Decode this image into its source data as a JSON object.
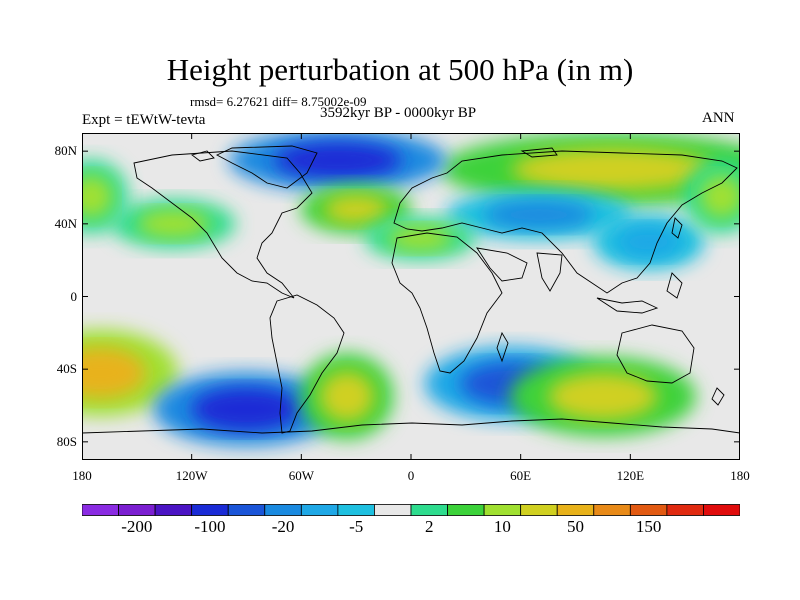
{
  "title": "Height perturbation at 500 hPa (in m)",
  "stats": "rmsd= 6.27621 diff= 8.75002e-09",
  "experiment": "Expt = tEWtW-tevta",
  "period": "3592kyr BP - 0000kyr BP",
  "season": "ANN",
  "lat_labels": [
    "80N",
    "40N",
    "0",
    "40S",
    "80S"
  ],
  "lat_values": [
    80,
    40,
    0,
    -40,
    -80
  ],
  "lon_labels": [
    "180",
    "120W",
    "60W",
    "0",
    "60E",
    "120E",
    "180"
  ],
  "lon_values": [
    -180,
    -120,
    -60,
    0,
    60,
    120,
    180
  ],
  "colorbar": {
    "colors": [
      "#8a2be2",
      "#7b1fd1",
      "#4b14c4",
      "#1a2bd6",
      "#1b55d8",
      "#1a8ae0",
      "#1fa8e6",
      "#1ec0e0",
      "#e8e8e8",
      "#2edc8e",
      "#3cd23a",
      "#a0e030",
      "#d0d020",
      "#e8b21a",
      "#e88a18",
      "#e25a12",
      "#e02a10",
      "#e00c0c"
    ],
    "labels": [
      "-200",
      "-100",
      "-20",
      "-5",
      "2",
      "10",
      "50",
      "150"
    ],
    "label_boundary_index": [
      1,
      3,
      5,
      7,
      9,
      11,
      13,
      15
    ]
  },
  "anomalies": [
    {
      "lon": -170,
      "lat": -42,
      "rlon": 25,
      "rlat": 14,
      "level": 13
    },
    {
      "lon": -90,
      "lat": -62,
      "rlon": 30,
      "rlat": 12,
      "level": 3
    },
    {
      "lon": -35,
      "lat": -55,
      "rlon": 15,
      "rlat": 14,
      "level": 12
    },
    {
      "lon": 55,
      "lat": -48,
      "rlon": 28,
      "rlat": 12,
      "level": 4
    },
    {
      "lon": 105,
      "lat": -55,
      "rlon": 30,
      "rlat": 13,
      "level": 12
    },
    {
      "lon": 110,
      "lat": 70,
      "rlon": 55,
      "rlat": 12,
      "level": 12
    },
    {
      "lon": -40,
      "lat": 75,
      "rlon": 35,
      "rlat": 10,
      "level": 3
    },
    {
      "lon": -30,
      "lat": 48,
      "rlon": 18,
      "rlat": 8,
      "level": 12
    },
    {
      "lon": 70,
      "lat": 45,
      "rlon": 30,
      "rlat": 8,
      "level": 5
    },
    {
      "lon": -130,
      "lat": 40,
      "rlon": 20,
      "rlat": 8,
      "level": 11
    },
    {
      "lon": 5,
      "lat": 32,
      "rlon": 18,
      "rlat": 7,
      "level": 11
    },
    {
      "lon": 130,
      "lat": 30,
      "rlon": 18,
      "rlat": 9,
      "level": 6
    },
    {
      "lon": -175,
      "lat": 55,
      "rlon": 12,
      "rlat": 12,
      "level": 11
    },
    {
      "lon": 170,
      "lat": 55,
      "rlon": 12,
      "rlat": 12,
      "level": 11
    }
  ]
}
